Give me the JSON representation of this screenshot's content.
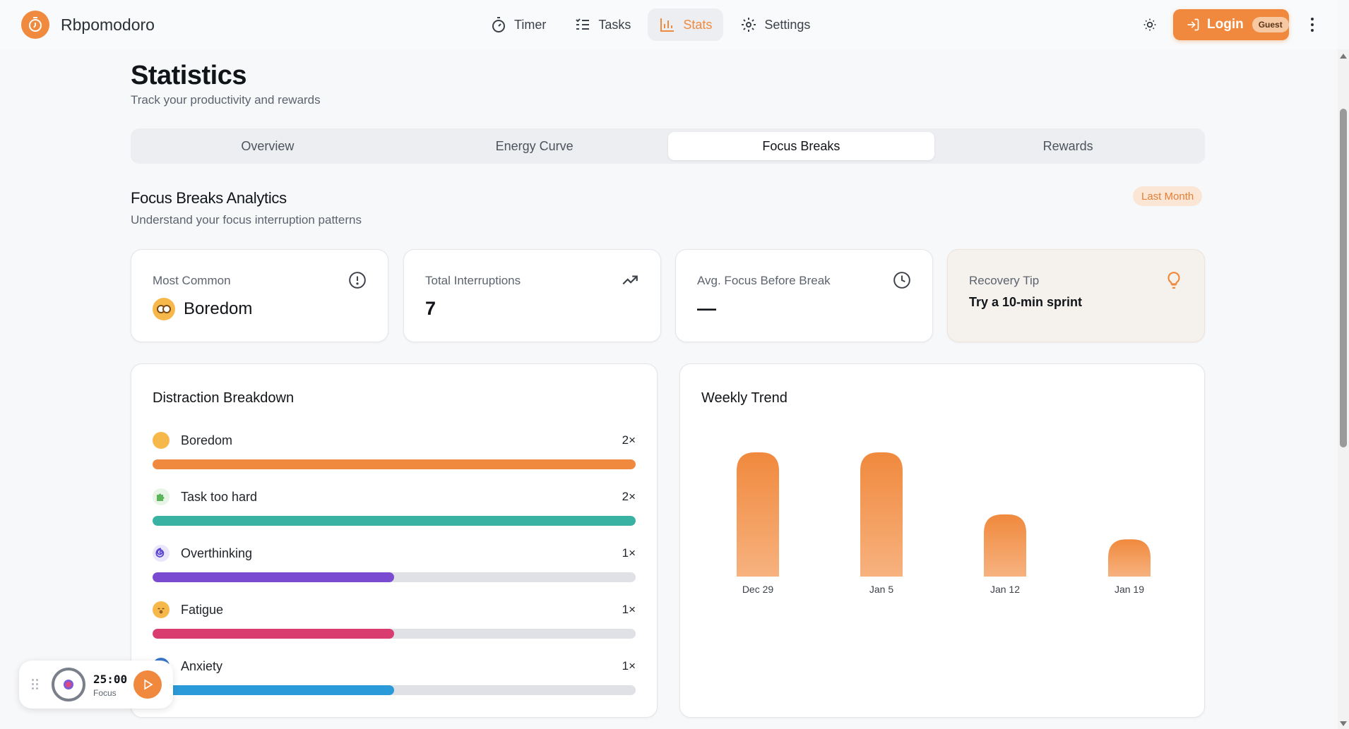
{
  "app": {
    "name": "Rbpomodoro"
  },
  "nav": [
    {
      "label": "Timer",
      "icon": "stopwatch-icon",
      "active": false
    },
    {
      "label": "Tasks",
      "icon": "task-list-icon",
      "active": false
    },
    {
      "label": "Stats",
      "icon": "bar-chart-icon",
      "active": true
    },
    {
      "label": "Settings",
      "icon": "gear-icon",
      "active": false
    }
  ],
  "header": {
    "login_label": "Login",
    "guest_badge": "Guest"
  },
  "page": {
    "title": "Statistics",
    "subtitle": "Track your productivity and rewards"
  },
  "tabs": [
    {
      "label": "Overview",
      "active": false
    },
    {
      "label": "Energy Curve",
      "active": false
    },
    {
      "label": "Focus Breaks",
      "active": true
    },
    {
      "label": "Rewards",
      "active": false
    }
  ],
  "section": {
    "title": "Focus Breaks Analytics",
    "subtitle": "Understand your focus interruption patterns",
    "period": "Last Month"
  },
  "stats": {
    "most_common": {
      "label": "Most Common",
      "value": "Boredom",
      "icon": "alert-circle-icon"
    },
    "total_interruptions": {
      "label": "Total Interruptions",
      "value": "7",
      "icon": "trending-up-icon"
    },
    "avg_focus": {
      "label": "Avg. Focus Before Break",
      "value": "—",
      "icon": "clock-icon"
    },
    "recovery_tip": {
      "label": "Recovery Tip",
      "value": "Try a 10-min sprint",
      "icon": "lightbulb-icon"
    }
  },
  "breakdown": {
    "title": "Distraction Breakdown",
    "items": [
      {
        "label": "Boredom",
        "count": "2×",
        "fraction": 1.0,
        "color": "#f0893d",
        "icon": "bored-face-icon"
      },
      {
        "label": "Task too hard",
        "count": "2×",
        "fraction": 1.0,
        "color": "#38b2a2",
        "icon": "puzzle-icon"
      },
      {
        "label": "Overthinking",
        "count": "1×",
        "fraction": 0.5,
        "color": "#7a4bd0",
        "icon": "spiral-icon"
      },
      {
        "label": "Fatigue",
        "count": "1×",
        "fraction": 0.5,
        "color": "#d93d70",
        "icon": "sleepy-face-icon"
      },
      {
        "label": "Anxiety",
        "count": "1×",
        "fraction": 0.5,
        "color": "#2b9ad8",
        "icon": "anxious-face-icon"
      }
    ]
  },
  "trend": {
    "title": "Weekly Trend"
  },
  "chart_data": {
    "type": "bar",
    "title": "Weekly Trend",
    "categories": [
      "Dec 29",
      "Jan 5",
      "Jan 12",
      "Jan 19"
    ],
    "values": [
      2,
      2,
      1,
      0.6
    ],
    "color": "#f0893d"
  },
  "mini_timer": {
    "time": "25:00",
    "mode": "Focus"
  }
}
